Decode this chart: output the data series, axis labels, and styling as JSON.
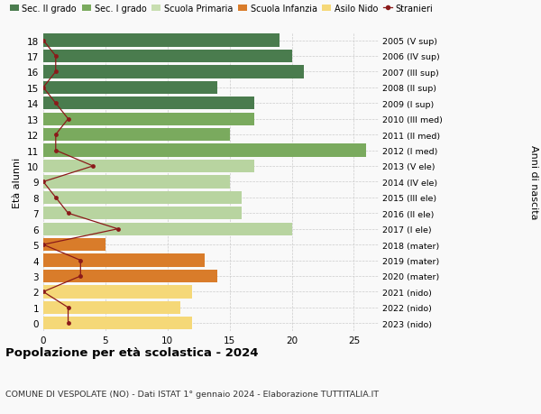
{
  "ages": [
    18,
    17,
    16,
    15,
    14,
    13,
    12,
    11,
    10,
    9,
    8,
    7,
    6,
    5,
    4,
    3,
    2,
    1,
    0
  ],
  "right_labels": [
    "2005 (V sup)",
    "2006 (IV sup)",
    "2007 (III sup)",
    "2008 (II sup)",
    "2009 (I sup)",
    "2010 (III med)",
    "2011 (II med)",
    "2012 (I med)",
    "2013 (V ele)",
    "2014 (IV ele)",
    "2015 (III ele)",
    "2016 (II ele)",
    "2017 (I ele)",
    "2018 (mater)",
    "2019 (mater)",
    "2020 (mater)",
    "2021 (nido)",
    "2022 (nido)",
    "2023 (nido)"
  ],
  "bar_values": [
    19,
    20,
    21,
    14,
    17,
    17,
    15,
    26,
    17,
    15,
    16,
    16,
    20,
    5,
    13,
    14,
    12,
    11,
    12
  ],
  "bar_colors": [
    "#4a7c4e",
    "#4a7c4e",
    "#4a7c4e",
    "#4a7c4e",
    "#4a7c4e",
    "#7aaa5e",
    "#7aaa5e",
    "#7aaa5e",
    "#b8d4a0",
    "#b8d4a0",
    "#b8d4a0",
    "#b8d4a0",
    "#b8d4a0",
    "#d97c2a",
    "#d97c2a",
    "#d97c2a",
    "#f5d878",
    "#f5d878",
    "#f5d878"
  ],
  "stranieri_values": [
    0,
    1,
    1,
    0,
    1,
    2,
    1,
    1,
    4,
    0,
    1,
    2,
    6,
    0,
    3,
    3,
    0,
    2,
    2
  ],
  "legend_labels": [
    "Sec. II grado",
    "Sec. I grado",
    "Scuola Primaria",
    "Scuola Infanzia",
    "Asilo Nido",
    "Stranieri"
  ],
  "legend_colors": [
    "#4a7c4e",
    "#7aaa5e",
    "#c8deb0",
    "#d97c2a",
    "#f5d878",
    "#c0392b"
  ],
  "title": "Popolazione per età scolastica - 2024",
  "subtitle": "COMUNE DI VESPOLATE (NO) - Dati ISTAT 1° gennaio 2024 - Elaborazione TUTTITALIA.IT",
  "ylabel": "Età alunni",
  "ylabel2": "Anni di nascita",
  "xlim": [
    0,
    27
  ],
  "bg_color": "#f9f9f9",
  "grid_color": "#cccccc",
  "stranieri_color": "#8b1a1a",
  "stranieri_line_color": "#8b1a1a"
}
